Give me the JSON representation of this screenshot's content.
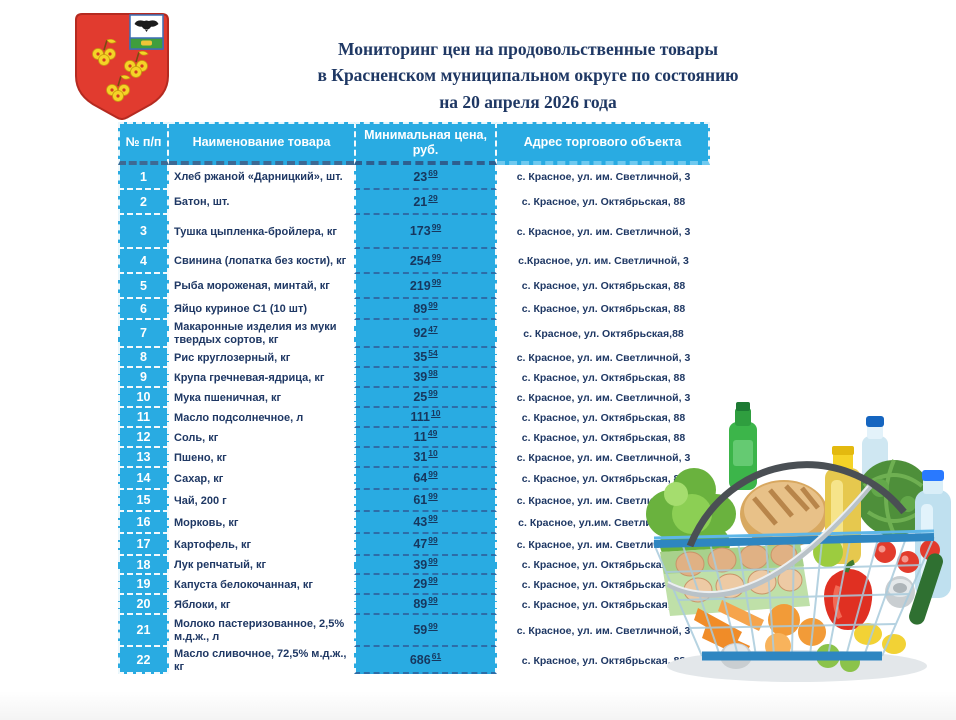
{
  "title": {
    "line1": "Мониторинг  цен на продовольственные  товары",
    "line2": "в Красненском муниципальном  округе по состоянию",
    "line3": "на 20 апреля 2026 года"
  },
  "colors": {
    "accent_cyan": "#29abe2",
    "text_navy": "#1f3864",
    "emblem_red": "#e13b2f",
    "emblem_gold": "#f5d327"
  },
  "images": {
    "emblem": "krasnoe-district-coat-of-arms",
    "basket": "grocery-basket-with-food-photo"
  },
  "table": {
    "headers": {
      "num": "№ п/п",
      "name": "Наименование товара",
      "price": "Минимальная цена, руб.",
      "address": "Адрес торгового объекта"
    },
    "rows": [
      {
        "num": "1",
        "name": "Хлеб ржаной «Дарницкий», шт.",
        "price_rub": "23",
        "price_kop": "69",
        "address": "с. Красное, ул.  им. Светличной, 3"
      },
      {
        "num": "2",
        "name": "Батон, шт.",
        "price_rub": "21",
        "price_kop": "29",
        "address": "с. Красное, ул. Октябрьская, 88"
      },
      {
        "num": "3",
        "name": "Тушка цыпленка-бройлера, кг",
        "price_rub": "173",
        "price_kop": "99",
        "address": "с. Красное, ул. им. Светличной, 3"
      },
      {
        "num": "4",
        "name": "Свинина (лопатка  без кости), кг",
        "price_rub": "254",
        "price_kop": "99",
        "address": "с.Красное, ул.  им. Светличной, 3"
      },
      {
        "num": "5",
        "name": "Рыба мороженая, минтай, кг",
        "price_rub": "219",
        "price_kop": "99",
        "address": "с. Красное, ул. Октябрьская, 88"
      },
      {
        "num": "6",
        "name": "Яйцо куриное С1 (10 шт)",
        "price_rub": "89",
        "price_kop": "99",
        "address": "с. Красное, ул. Октябрьская, 88"
      },
      {
        "num": "7",
        "name": "Макаронные изделия из муки твердых сортов, кг",
        "price_rub": "92",
        "price_kop": "47",
        "address": "с. Красное, ул. Октябрьская,88"
      },
      {
        "num": "8",
        "name": "Рис круглозерный, кг",
        "price_rub": "35",
        "price_kop": "54",
        "address": "с. Красное, ул. им. Светличной, 3"
      },
      {
        "num": "9",
        "name": "Крупа гречневая-ядрица, кг",
        "price_rub": "39",
        "price_kop": "98",
        "address": "с. Красное, ул. Октябрьская, 88"
      },
      {
        "num": "10",
        "name": "Мука пшеничная, кг",
        "price_rub": "25",
        "price_kop": "99",
        "address": "с. Красное, ул. им. Светличной, 3"
      },
      {
        "num": "11",
        "name": "Масло подсолнечное, л",
        "price_rub": "111",
        "price_kop": "10",
        "address": "с. Красное, ул. Октябрьская, 88"
      },
      {
        "num": "12",
        "name": "Соль, кг",
        "price_rub": "11",
        "price_kop": "49",
        "address": "с. Красное, ул. Октябрьская, 88"
      },
      {
        "num": "13",
        "name": "Пшено, кг",
        "price_rub": "31",
        "price_kop": "10",
        "address": "с. Красное, ул. им. Светличной, 3"
      },
      {
        "num": "14",
        "name": "Сахар, кг",
        "price_rub": "64",
        "price_kop": "99",
        "address": "с. Красное, ул. Октябрьская, 88"
      },
      {
        "num": "15",
        "name": "Чай, 200 г",
        "price_rub": "61",
        "price_kop": "99",
        "address": "с. Красное, ул.  им. Светличной, 3"
      },
      {
        "num": "16",
        "name": "Морковь, кг",
        "price_rub": "43",
        "price_kop": "99",
        "address": "с. Красное, ул.им. Светличной, 3"
      },
      {
        "num": "17",
        "name": "Картофель, кг",
        "price_rub": "47",
        "price_kop": "99",
        "address": "с. Красное, ул. им. Светличной, 3"
      },
      {
        "num": "18",
        "name": "Лук репчатый, кг",
        "price_rub": "39",
        "price_kop": "99",
        "address": "с. Красное, ул. Октябрьская, 88"
      },
      {
        "num": "19",
        "name": "Капуста белокочанная, кг",
        "price_rub": "29",
        "price_kop": "99",
        "address": "с. Красное, ул. Октябрьская, 88"
      },
      {
        "num": "20",
        "name": "Яблоки, кг",
        "price_rub": "89",
        "price_kop": "99",
        "address": "с. Красное, ул. Октябрьская, 88"
      },
      {
        "num": "21",
        "name": "Молоко пастеризованное, 2,5% м.д.ж., л",
        "price_rub": "59",
        "price_kop": "99",
        "address": "с. Красное, ул. им. Светличной, 3"
      },
      {
        "num": "22",
        "name": "Масло сливочное, 72,5% м.д.ж., кг",
        "price_rub": "686",
        "price_kop": "61",
        "address": "с. Красное, ул. Октябрьская, 88"
      }
    ]
  }
}
